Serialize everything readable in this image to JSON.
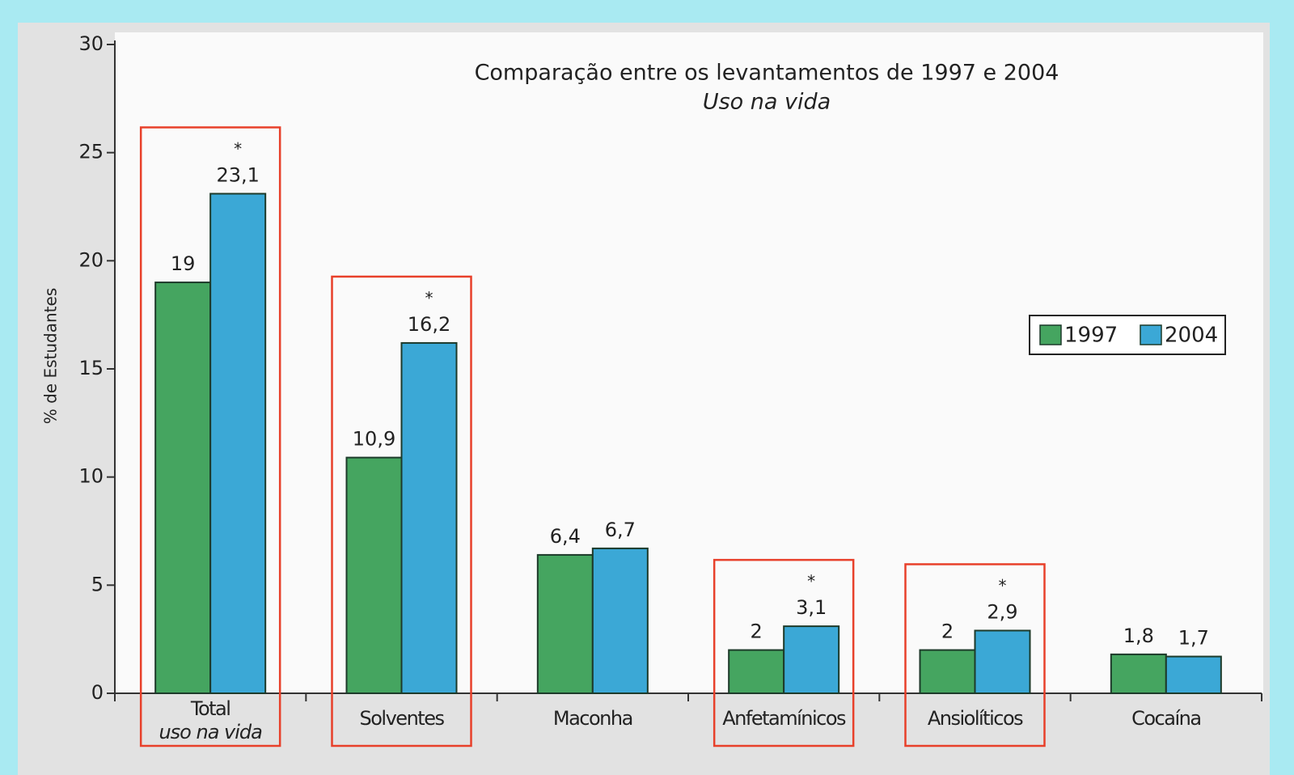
{
  "chart_data": {
    "type": "bar",
    "title": "Comparação entre os levantamentos de 1997 e 2004",
    "subtitle": "Uso na vida",
    "y_label": "% de Estudantes",
    "categories": [
      "Total",
      "Solventes",
      "Maconha",
      "Anfetamínicos",
      "Ansiolíticos",
      "Cocaína"
    ],
    "total_sublabel": "uso na vida",
    "series": [
      {
        "name": "1997",
        "color": "#45a560",
        "values": [
          19,
          10.9,
          6.4,
          2,
          2,
          1.8
        ],
        "value_labels": [
          "19",
          "10,9",
          "6,4",
          "2",
          "2",
          "1,8"
        ]
      },
      {
        "name": "2004",
        "color": "#3ba8d6",
        "values": [
          23.1,
          16.2,
          6.7,
          3.1,
          2.9,
          1.7
        ],
        "value_labels": [
          "23,1",
          "16,2",
          "6,7",
          "3,1",
          "2,9",
          "1,7"
        ],
        "significance": [
          "*",
          "*",
          null,
          "*",
          "*",
          null
        ]
      }
    ],
    "highlighted": [
      true,
      true,
      false,
      true,
      true,
      false
    ],
    "highlight_color": "#e8402a",
    "ylim": [
      0,
      30
    ],
    "yticks": [
      0,
      5,
      10,
      15,
      20,
      25,
      30
    ],
    "legend": "right"
  }
}
